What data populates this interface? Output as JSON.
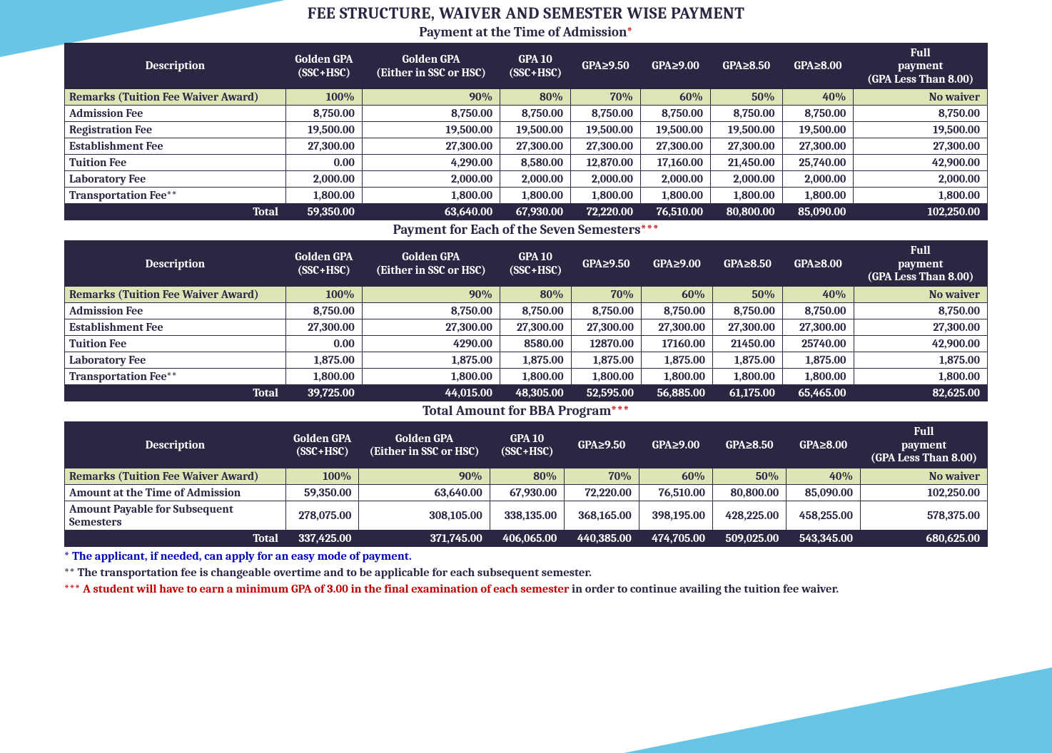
{
  "page_title": "FEE STRUCTURE, WAIVER AND SEMESTER WISE PAYMENT",
  "colors": {
    "header_bg": "#2a2742",
    "header_text": "#ffffff",
    "remarks_bg": "#dbe5b6",
    "body_text": "#2a2742",
    "accent_bg": "#68c5e6",
    "star_red": "#c00000",
    "footnote_blue": "#0000c0"
  },
  "columns": [
    "Description",
    "Golden GPA (SSC+HSC)",
    "Golden GPA (Either in SSC or HSC)",
    "GPA 10 (SSC+HSC)",
    "GPA≥9.50",
    "GPA≥9.00",
    "GPA≥8.50",
    "GPA≥8.00",
    "Full payment (GPA Less Than 8.00)"
  ],
  "remarks_label": "Remarks (Tuition Fee Waiver Award)",
  "remarks_values": [
    "100%",
    "90%",
    "80%",
    "70%",
    "60%",
    "50%",
    "40%",
    "No waiver"
  ],
  "table1": {
    "title": "Payment at the Time of Admission",
    "title_star": "*",
    "rows": [
      {
        "label": "Admission Fee",
        "v": [
          "8,750.00",
          "8,750.00",
          "8,750.00",
          "8,750.00",
          "8,750.00",
          "8,750.00",
          "8,750.00",
          "8,750.00"
        ]
      },
      {
        "label": "Registration Fee",
        "v": [
          "19,500.00",
          "19,500.00",
          "19,500.00",
          "19,500.00",
          "19,500.00",
          "19,500.00",
          "19,500.00",
          "19,500.00"
        ]
      },
      {
        "label": "Establishment Fee",
        "v": [
          "27,300.00",
          "27,300.00",
          "27,300.00",
          "27,300.00",
          "27,300.00",
          "27,300.00",
          "27,300.00",
          "27,300.00"
        ]
      },
      {
        "label": "Tuition Fee",
        "v": [
          "0.00",
          "4,290.00",
          "8,580.00",
          "12,870.00",
          "17,160.00",
          "21,450.00",
          "25,740.00",
          "42,900.00"
        ]
      },
      {
        "label": "Laboratory Fee",
        "v": [
          "2,000.00",
          "2,000.00",
          "2,000.00",
          "2,000.00",
          "2,000.00",
          "2,000.00",
          "2,000.00",
          "2,000.00"
        ]
      },
      {
        "label": "Transportation Fee**",
        "v": [
          "1,800.00",
          "1,800.00",
          "1,800.00",
          "1,800.00",
          "1,800.00",
          "1,800.00",
          "1,800.00",
          "1,800.00"
        ]
      }
    ],
    "total_label": "Total",
    "total": [
      "59,350.00",
      "63,640.00",
      "67,930.00",
      "72,220.00",
      "76,510.00",
      "80,800.00",
      "85,090.00",
      "102,250.00"
    ]
  },
  "table2": {
    "title": "Payment for Each of the Seven Semesters",
    "title_star": "***",
    "rows": [
      {
        "label": "Admission Fee",
        "v": [
          "8,750.00",
          "8,750.00",
          "8,750.00",
          "8,750.00",
          "8,750.00",
          "8,750.00",
          "8,750.00",
          "8,750.00"
        ]
      },
      {
        "label": "Establishment Fee",
        "v": [
          "27,300.00",
          "27,300.00",
          "27,300.00",
          "27,300.00",
          "27,300.00",
          "27,300.00",
          "27,300.00",
          "27,300.00"
        ]
      },
      {
        "label": "Tuition Fee",
        "v": [
          "0.00",
          "4290.00",
          "8580.00",
          "12870.00",
          "17160.00",
          "21450.00",
          "25740.00",
          "42,900.00"
        ]
      },
      {
        "label": "Laboratory Fee",
        "v": [
          "1,875.00",
          "1,875.00",
          "1,875.00",
          "1,875.00",
          "1,875.00",
          "1,875.00",
          "1,875.00",
          "1,875.00"
        ]
      },
      {
        "label": "Transportation Fee**",
        "v": [
          "1,800.00",
          "1,800.00",
          "1,800.00",
          "1,800.00",
          "1,800.00",
          "1,800.00",
          "1,800.00",
          "1,800.00"
        ]
      }
    ],
    "total_label": "Total",
    "total": [
      "39,725.00",
      "44,015.00",
      "48,305.00",
      "52,595.00",
      "56,885.00",
      "61,175.00",
      "65,465.00",
      "82,625.00"
    ]
  },
  "table3": {
    "title": "Total Amount for BBA Program",
    "title_star": "***",
    "rows": [
      {
        "label": "Amount at the Time of Admission",
        "v": [
          "59,350.00",
          "63,640.00",
          "67,930.00",
          "72,220.00",
          "76,510.00",
          "80,800.00",
          "85,090.00",
          "102,250.00"
        ]
      },
      {
        "label": "Amount Payable for Subsequent Semesters",
        "v": [
          "278,075.00",
          "308,105.00",
          "338,135.00",
          "368,165.00",
          "398,195.00",
          "428,225.00",
          "458,255.00",
          "578,375.00"
        ]
      }
    ],
    "total_label": "Total",
    "total": [
      "337,425.00",
      "371,745.00",
      "406,065.00",
      "440,385.00",
      "474,705.00",
      "509,025.00",
      "543,345.00",
      "680,625.00"
    ]
  },
  "footnotes": {
    "f1": "* The applicant, if needed, can apply for an easy mode of payment.",
    "f2": "** The transportation fee is changeable overtime and to be applicable for each subsequent semester.",
    "f3_stars": "*** ",
    "f3_a": "A student will have to earn a minimum GPA of 3.00 in the final examination of each semester",
    "f3_b": " in order to continue availing the tuition fee waiver."
  }
}
